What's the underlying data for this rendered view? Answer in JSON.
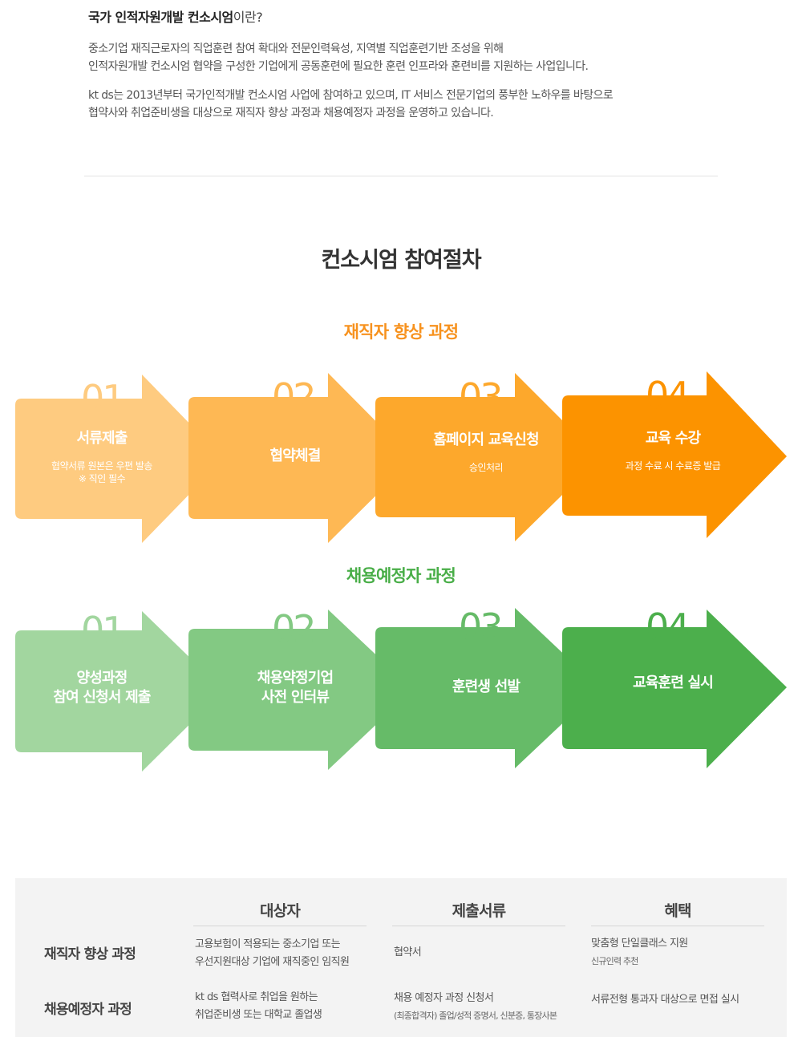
{
  "intro": {
    "title_bold": "국가 인적자원개발 컨소시엄",
    "title_suffix": "이란?",
    "p1_line1": "중소기업 재직근로자의 직업훈련 참여 확대와 전문인력육성, 지역별 직업훈련기반 조성을 위해",
    "p1_line2": "인적자원개발 컨소시엄 협약을 구성한 기업에게 공동훈련에 필요한 훈련 인프라와 훈련비를 지원하는 사업입니다.",
    "p2_line1": "kt ds는 2013년부터 국가인적개발 컨소시엄 사업에 참여하고 있으며, IT 서비스 전문기업의 풍부한 노하우를 바탕으로",
    "p2_line2": "협약사와 취업준비생을 대상으로 재직자 향상 과정과 채용예정자 과정을 운영하고 있습니다."
  },
  "section_title": "컨소시엄 참여절차",
  "tracks": {
    "employee": {
      "title": "재직자 향상 과정",
      "steps": [
        {
          "num": "01",
          "label": "서류제출",
          "desc": "협약서류 원본은 우편 발송",
          "desc2": "※ 직인 필수",
          "color": "#fecb80"
        },
        {
          "num": "02",
          "label": "협약체결",
          "desc": "",
          "desc2": "",
          "color": "#feb854"
        },
        {
          "num": "03",
          "label": "홈페이지 교육신청",
          "desc": "승인처리",
          "desc2": "",
          "color": "#fda82c"
        },
        {
          "num": "04",
          "label": "교육 수강",
          "desc": "과정 수료 시 수료증 발급",
          "desc2": "",
          "color": "#fc9300"
        }
      ]
    },
    "recruit": {
      "title": "채용예정자 과정",
      "steps": [
        {
          "num": "01",
          "label": "양성과정",
          "label2": "참여 신청서 제출",
          "color": "#a2d69f"
        },
        {
          "num": "02",
          "label": "채용약정기업",
          "label2": "사전 인터뷰",
          "color": "#83c983"
        },
        {
          "num": "03",
          "label": "훈련생 선발",
          "label2": "",
          "color": "#66bb68"
        },
        {
          "num": "04",
          "label": "교육훈련 실시",
          "label2": "",
          "color": "#4caf4c"
        }
      ]
    }
  },
  "table": {
    "headers": [
      "대상자",
      "제출서류",
      "혜택"
    ],
    "rows": [
      {
        "name": "재직자 향상 과정",
        "target_l1": "고용보험이 적용되는 중소기업 또는",
        "target_l2": "우선지원대상 기업에 재직중인 임직원",
        "docs_l1": "협약서",
        "docs_l2": "",
        "benefit_l1": "맞춤형 단일클래스 지원",
        "benefit_l2": "신규인력 추천"
      },
      {
        "name": "채용예정자 과정",
        "target_l1": "kt ds 협력사로 취업을 원하는",
        "target_l2": "취업준비생 또는 대학교 졸업생",
        "docs_l1": "채용 예정자 과정 신청서",
        "docs_l2": "(최종합격자) 졸업/성적 증명서, 신분증, 통장사본",
        "benefit_l1": "서류전형 통과자 대상으로 면접 실시",
        "benefit_l2": ""
      }
    ]
  }
}
